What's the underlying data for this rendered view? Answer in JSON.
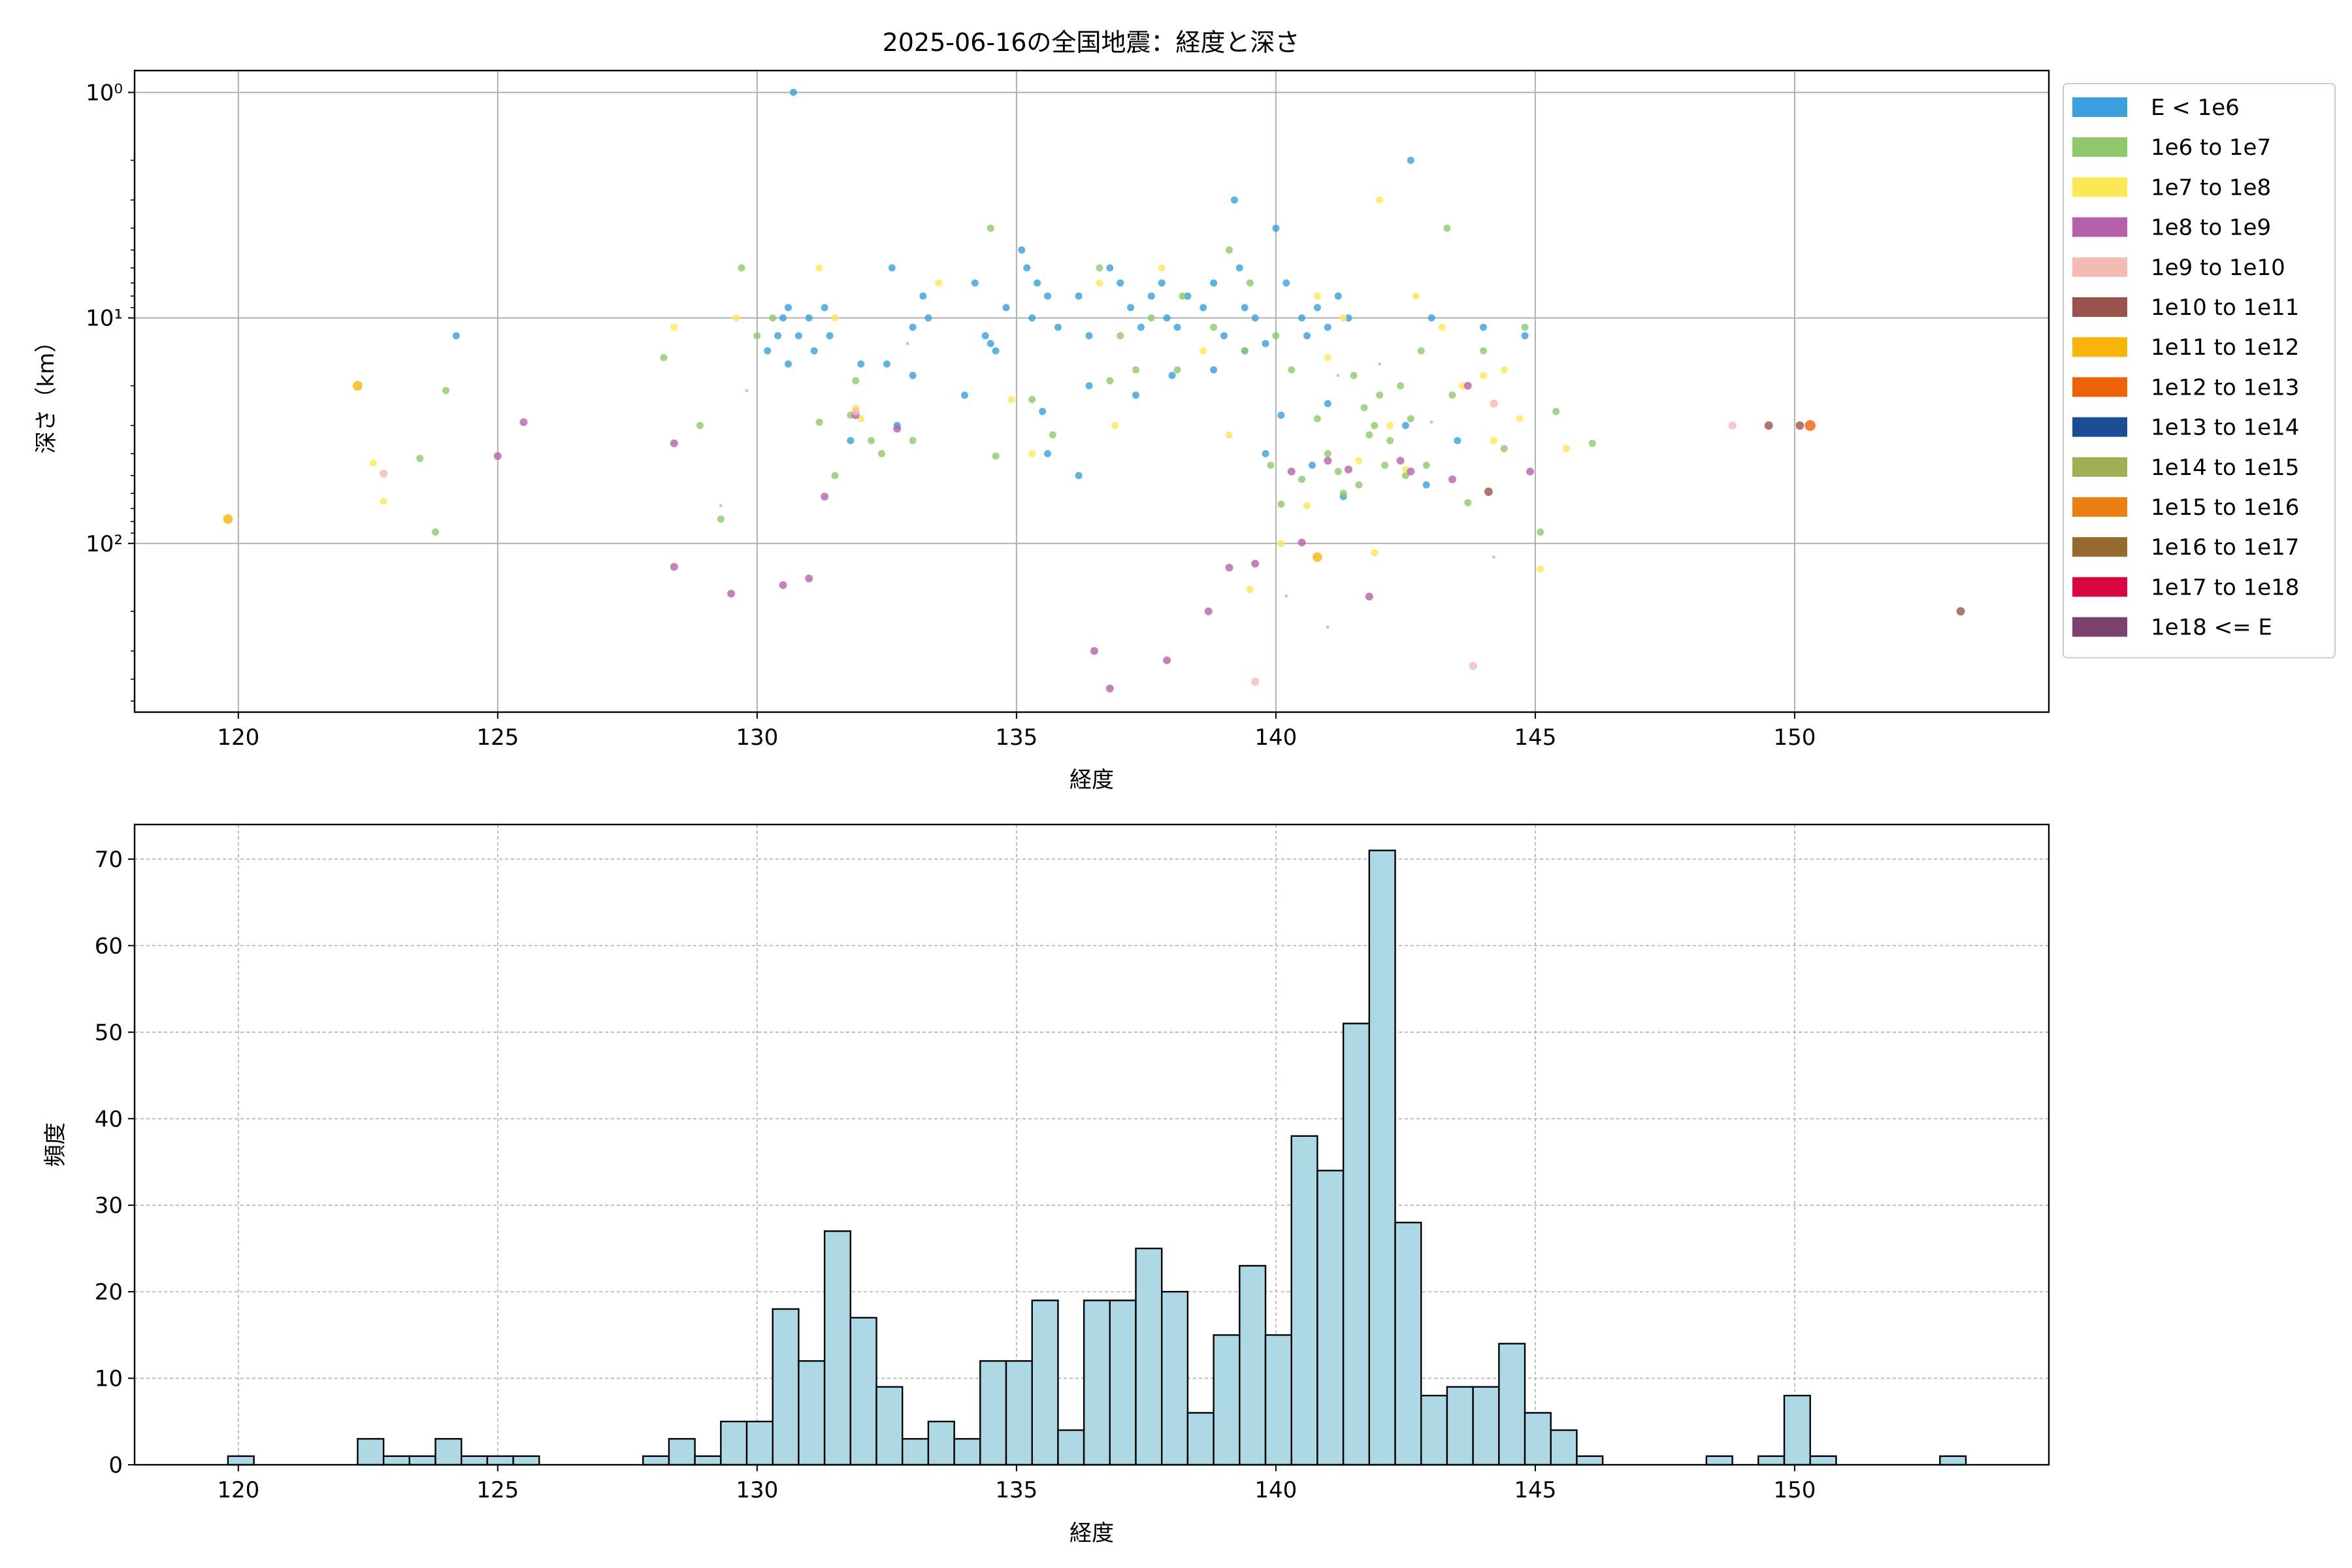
{
  "figure": {
    "title": "2025-06-16の全国地震：経度と深さ"
  },
  "chart_data": [
    {
      "type": "scatter",
      "title": "2025-06-16の全国地震：経度と深さ",
      "xlabel": "経度",
      "ylabel": "深さ（km）",
      "xlim": [
        118,
        154.9
      ],
      "ylim": [
        0.8,
        560
      ],
      "yscale": "log",
      "y_inverted": true,
      "grid": true,
      "legend_placement": "outside-right",
      "x_ticks": [
        120,
        125,
        130,
        135,
        140,
        145,
        150
      ],
      "x_tick_labels": [
        "120",
        "125",
        "130",
        "135",
        "140",
        "145",
        "150"
      ],
      "y_ticks": [
        1,
        10,
        100
      ],
      "y_tick_labels": [
        "10⁰",
        "10¹",
        "10²"
      ],
      "legend": [
        {
          "label": "E < 1e6",
          "color": "#3a9fdc"
        },
        {
          "label": "1e6 to 1e7",
          "color": "#8ec86b"
        },
        {
          "label": "1e7 to 1e8",
          "color": "#fce755"
        },
        {
          "label": "1e8 to 1e9",
          "color": "#b561a9"
        },
        {
          "label": "1e9 to 1e10",
          "color": "#f5bcb6"
        },
        {
          "label": "1e10 to 1e11",
          "color": "#9a524d"
        },
        {
          "label": "1e11 to 1e12",
          "color": "#f8b40b"
        },
        {
          "label": "1e12 to 1e13",
          "color": "#ec6208"
        },
        {
          "label": "1e13 to 1e14",
          "color": "#1c4c94"
        },
        {
          "label": "1e14 to 1e15",
          "color": "#a0ad52"
        },
        {
          "label": "1e15 to 1e16",
          "color": "#ec7e12"
        },
        {
          "label": "1e16 to 1e17",
          "color": "#976b2d"
        },
        {
          "label": "1e17 to 1e18",
          "color": "#d7063e"
        },
        {
          "label": "1e18 <= E",
          "color": "#7a426c"
        }
      ],
      "series": [
        {
          "color": "#3a9fdc",
          "size": 2.4,
          "points": [
            [
              130.7,
              1.0
            ],
            [
              124.2,
              12
            ],
            [
              130.2,
              14
            ],
            [
              130.5,
              10
            ],
            [
              130.6,
              9
            ],
            [
              130.8,
              12
            ],
            [
              131.0,
              10
            ],
            [
              131.3,
              9
            ],
            [
              131.1,
              14
            ],
            [
              130.4,
              12
            ],
            [
              132.5,
              16
            ],
            [
              132.6,
              6
            ],
            [
              133.0,
              11
            ],
            [
              133.2,
              8
            ],
            [
              133.3,
              10
            ],
            [
              134.2,
              7
            ],
            [
              134.4,
              12
            ],
            [
              134.5,
              13
            ],
            [
              134.8,
              9
            ],
            [
              135.1,
              5
            ],
            [
              135.2,
              6
            ],
            [
              135.3,
              10
            ],
            [
              135.4,
              7
            ],
            [
              135.6,
              8
            ],
            [
              135.8,
              11
            ],
            [
              136.2,
              8
            ],
            [
              136.4,
              12
            ],
            [
              136.8,
              6
            ],
            [
              137.0,
              7
            ],
            [
              137.2,
              9
            ],
            [
              137.4,
              11
            ],
            [
              137.6,
              8
            ],
            [
              137.8,
              7
            ],
            [
              137.9,
              10
            ],
            [
              138.1,
              11
            ],
            [
              138.3,
              8
            ],
            [
              138.6,
              9
            ],
            [
              138.8,
              7
            ],
            [
              139.0,
              12
            ],
            [
              139.2,
              3
            ],
            [
              139.3,
              6
            ],
            [
              139.4,
              9
            ],
            [
              139.6,
              10
            ],
            [
              139.8,
              13
            ],
            [
              140.0,
              4
            ],
            [
              140.2,
              7
            ],
            [
              140.5,
              10
            ],
            [
              140.6,
              12
            ],
            [
              140.8,
              9
            ],
            [
              141.0,
              11
            ],
            [
              141.2,
              8
            ],
            [
              141.4,
              10
            ],
            [
              142.6,
              2
            ],
            [
              143.0,
              10
            ],
            [
              144.0,
              11
            ],
            [
              144.8,
              12
            ],
            [
              130.6,
              16
            ],
            [
              131.4,
              12
            ],
            [
              132.0,
              16
            ],
            [
              133.0,
              18
            ],
            [
              134.0,
              22
            ],
            [
              134.6,
              14
            ],
            [
              135.5,
              26
            ],
            [
              136.4,
              20
            ],
            [
              137.3,
              22
            ],
            [
              138.0,
              18
            ],
            [
              138.8,
              17
            ],
            [
              139.4,
              14
            ],
            [
              140.1,
              27
            ],
            [
              141.0,
              24
            ],
            [
              142.5,
              30
            ],
            [
              143.5,
              35
            ],
            [
              131.8,
              35
            ],
            [
              132.7,
              30
            ],
            [
              135.6,
              40
            ],
            [
              136.2,
              50
            ],
            [
              139.8,
              40
            ],
            [
              140.7,
              45
            ],
            [
              141.3,
              62
            ],
            [
              142.9,
              55
            ]
          ]
        },
        {
          "color": "#8ec86b",
          "size": 2.4,
          "points": [
            [
              123.5,
              42
            ],
            [
              124.0,
              21
            ],
            [
              123.8,
              89
            ],
            [
              128.2,
              15
            ],
            [
              128.9,
              30
            ],
            [
              129.7,
              6
            ],
            [
              130.0,
              12
            ],
            [
              130.3,
              10
            ],
            [
              131.2,
              29
            ],
            [
              131.5,
              50
            ],
            [
              131.9,
              19
            ],
            [
              132.4,
              40
            ],
            [
              133.0,
              35
            ],
            [
              134.5,
              4
            ],
            [
              134.6,
              41
            ],
            [
              135.3,
              23
            ],
            [
              135.7,
              33
            ],
            [
              136.6,
              6
            ],
            [
              137.0,
              12
            ],
            [
              137.3,
              17
            ],
            [
              137.6,
              10
            ],
            [
              138.2,
              8
            ],
            [
              138.8,
              11
            ],
            [
              139.1,
              5
            ],
            [
              139.4,
              14
            ],
            [
              139.9,
              45
            ],
            [
              140.1,
              67
            ],
            [
              140.3,
              17
            ],
            [
              140.5,
              52
            ],
            [
              140.8,
              28
            ],
            [
              141.0,
              40
            ],
            [
              141.3,
              60
            ],
            [
              141.5,
              18
            ],
            [
              141.7,
              25
            ],
            [
              141.9,
              30
            ],
            [
              142.0,
              22
            ],
            [
              142.2,
              35
            ],
            [
              142.4,
              20
            ],
            [
              142.6,
              28
            ],
            [
              142.8,
              14
            ],
            [
              143.3,
              4
            ],
            [
              143.7,
              66
            ],
            [
              144.0,
              14
            ],
            [
              144.4,
              38
            ],
            [
              144.8,
              11
            ],
            [
              145.1,
              89
            ],
            [
              145.4,
              26
            ],
            [
              146.1,
              36
            ],
            [
              141.2,
              48
            ],
            [
              141.6,
              55
            ],
            [
              142.1,
              45
            ],
            [
              142.5,
              50
            ],
            [
              139.5,
              7
            ],
            [
              138.1,
              17
            ],
            [
              136.8,
              19
            ],
            [
              129.3,
              78
            ],
            [
              131.8,
              27
            ],
            [
              132.2,
              35
            ],
            [
              140.0,
              12
            ],
            [
              141.8,
              33
            ],
            [
              142.9,
              45
            ],
            [
              143.4,
              22
            ]
          ]
        },
        {
          "color": "#fce755",
          "size": 2.4,
          "points": [
            [
              122.6,
              44
            ],
            [
              122.8,
              65
            ],
            [
              128.4,
              11
            ],
            [
              129.6,
              10
            ],
            [
              131.2,
              6
            ],
            [
              131.5,
              10
            ],
            [
              132.0,
              28
            ],
            [
              133.5,
              7
            ],
            [
              135.3,
              40
            ],
            [
              136.6,
              7
            ],
            [
              137.8,
              6
            ],
            [
              138.6,
              14
            ],
            [
              139.1,
              33
            ],
            [
              139.5,
              160
            ],
            [
              140.1,
              100
            ],
            [
              140.6,
              68
            ],
            [
              141.0,
              15
            ],
            [
              141.3,
              10
            ],
            [
              141.6,
              43
            ],
            [
              141.9,
              110
            ],
            [
              142.2,
              30
            ],
            [
              142.5,
              47
            ],
            [
              142.0,
              3
            ],
            [
              142.7,
              8
            ],
            [
              143.2,
              11
            ],
            [
              143.6,
              20
            ],
            [
              144.0,
              18
            ],
            [
              144.2,
              35
            ],
            [
              144.4,
              17
            ],
            [
              144.7,
              28
            ],
            [
              145.1,
              130
            ],
            [
              145.6,
              38
            ],
            [
              131.9,
              25
            ],
            [
              134.9,
              23
            ],
            [
              136.9,
              30
            ],
            [
              140.8,
              8
            ]
          ]
        },
        {
          "color": "#b561a9",
          "size": 2.6,
          "points": [
            [
              125.0,
              41
            ],
            [
              125.5,
              29
            ],
            [
              128.4,
              36
            ],
            [
              128.4,
              127
            ],
            [
              129.5,
              167
            ],
            [
              130.5,
              153
            ],
            [
              131.0,
              143
            ],
            [
              131.3,
              62
            ],
            [
              131.9,
              27
            ],
            [
              132.7,
              31
            ],
            [
              136.5,
              300
            ],
            [
              136.8,
              440
            ],
            [
              137.9,
              330
            ],
            [
              138.7,
              200
            ],
            [
              139.1,
              128
            ],
            [
              139.6,
              123
            ],
            [
              140.3,
              48
            ],
            [
              140.5,
              99
            ],
            [
              141.0,
              43
            ],
            [
              141.4,
              47
            ],
            [
              141.8,
              172
            ],
            [
              142.4,
              43
            ],
            [
              142.6,
              48
            ],
            [
              143.4,
              52
            ],
            [
              143.7,
              20
            ],
            [
              144.9,
              48
            ]
          ]
        },
        {
          "color": "#f5bcb6",
          "size": 2.7,
          "points": [
            [
              122.8,
              49
            ],
            [
              131.9,
              26
            ],
            [
              139.6,
              410
            ],
            [
              143.8,
              350
            ],
            [
              144.2,
              24
            ],
            [
              148.8,
              30
            ]
          ]
        },
        {
          "color": "#9a524d",
          "size": 2.8,
          "points": [
            [
              144.1,
              59
            ],
            [
              149.5,
              30
            ],
            [
              150.1,
              30
            ],
            [
              153.2,
              200
            ]
          ]
        },
        {
          "color": "#f8b40b",
          "size": 3.2,
          "points": [
            [
              119.8,
              78
            ],
            [
              122.3,
              20
            ],
            [
              140.8,
              115
            ]
          ]
        },
        {
          "color": "#ec6208",
          "size": 3.6,
          "points": [
            [
              150.3,
              30
            ]
          ]
        },
        {
          "color": "#bbbbbb",
          "size": 1.1,
          "points": [
            [
              129.8,
              21
            ],
            [
              129.3,
              68
            ],
            [
              132.9,
              13
            ],
            [
              140.2,
              171
            ],
            [
              141.0,
              235
            ],
            [
              141.2,
              18
            ],
            [
              142.0,
              16
            ],
            [
              144.2,
              115
            ],
            [
              143.0,
              29
            ]
          ]
        }
      ]
    },
    {
      "type": "bar",
      "xlabel": "経度",
      "ylabel": "頻度",
      "xlim": [
        118,
        154.9
      ],
      "ylim": [
        0,
        74
      ],
      "grid": true,
      "x_ticks": [
        120,
        125,
        130,
        135,
        140,
        145,
        150
      ],
      "x_tick_labels": [
        "120",
        "125",
        "130",
        "135",
        "140",
        "145",
        "150"
      ],
      "y_ticks": [
        0,
        10,
        20,
        30,
        40,
        50,
        60,
        70
      ],
      "y_tick_labels": [
        "0",
        "10",
        "20",
        "30",
        "40",
        "50",
        "60",
        "70"
      ],
      "bar_color": "#add8e6",
      "edge_color": "#000000",
      "bin_start": 119.8,
      "bin_width": 0.5,
      "counts": [
        1,
        0,
        0,
        0,
        0,
        3,
        1,
        1,
        3,
        1,
        1,
        1,
        0,
        0,
        0,
        0,
        1,
        3,
        1,
        5,
        5,
        18,
        12,
        27,
        17,
        9,
        3,
        5,
        3,
        12,
        12,
        19,
        4,
        19,
        19,
        25,
        20,
        6,
        15,
        23,
        15,
        38,
        34,
        51,
        71,
        28,
        8,
        9,
        9,
        14,
        6,
        4,
        1,
        0,
        0,
        0,
        0,
        1,
        0,
        1,
        8,
        1,
        0,
        0,
        0,
        0,
        1
      ]
    }
  ]
}
